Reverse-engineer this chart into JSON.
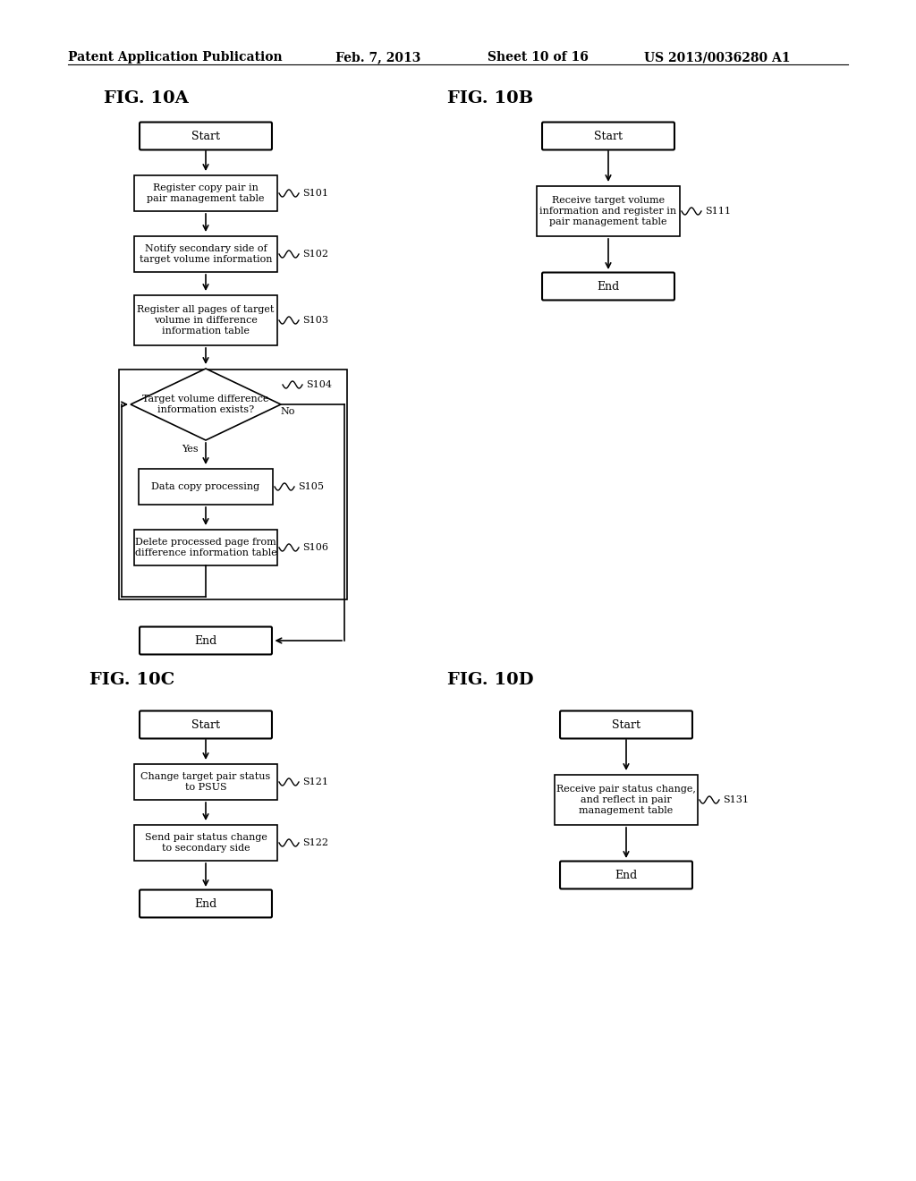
{
  "bg_color": "#ffffff",
  "header_text": "Patent Application Publication",
  "header_date": "Feb. 7, 2013",
  "header_sheet": "Sheet 10 of 16",
  "header_patent": "US 2013/0036280 A1",
  "fig_10a_label": "FIG. 10A",
  "fig_10b_label": "FIG. 10B",
  "fig_10c_label": "FIG. 10C",
  "fig_10d_label": "FIG. 10D"
}
